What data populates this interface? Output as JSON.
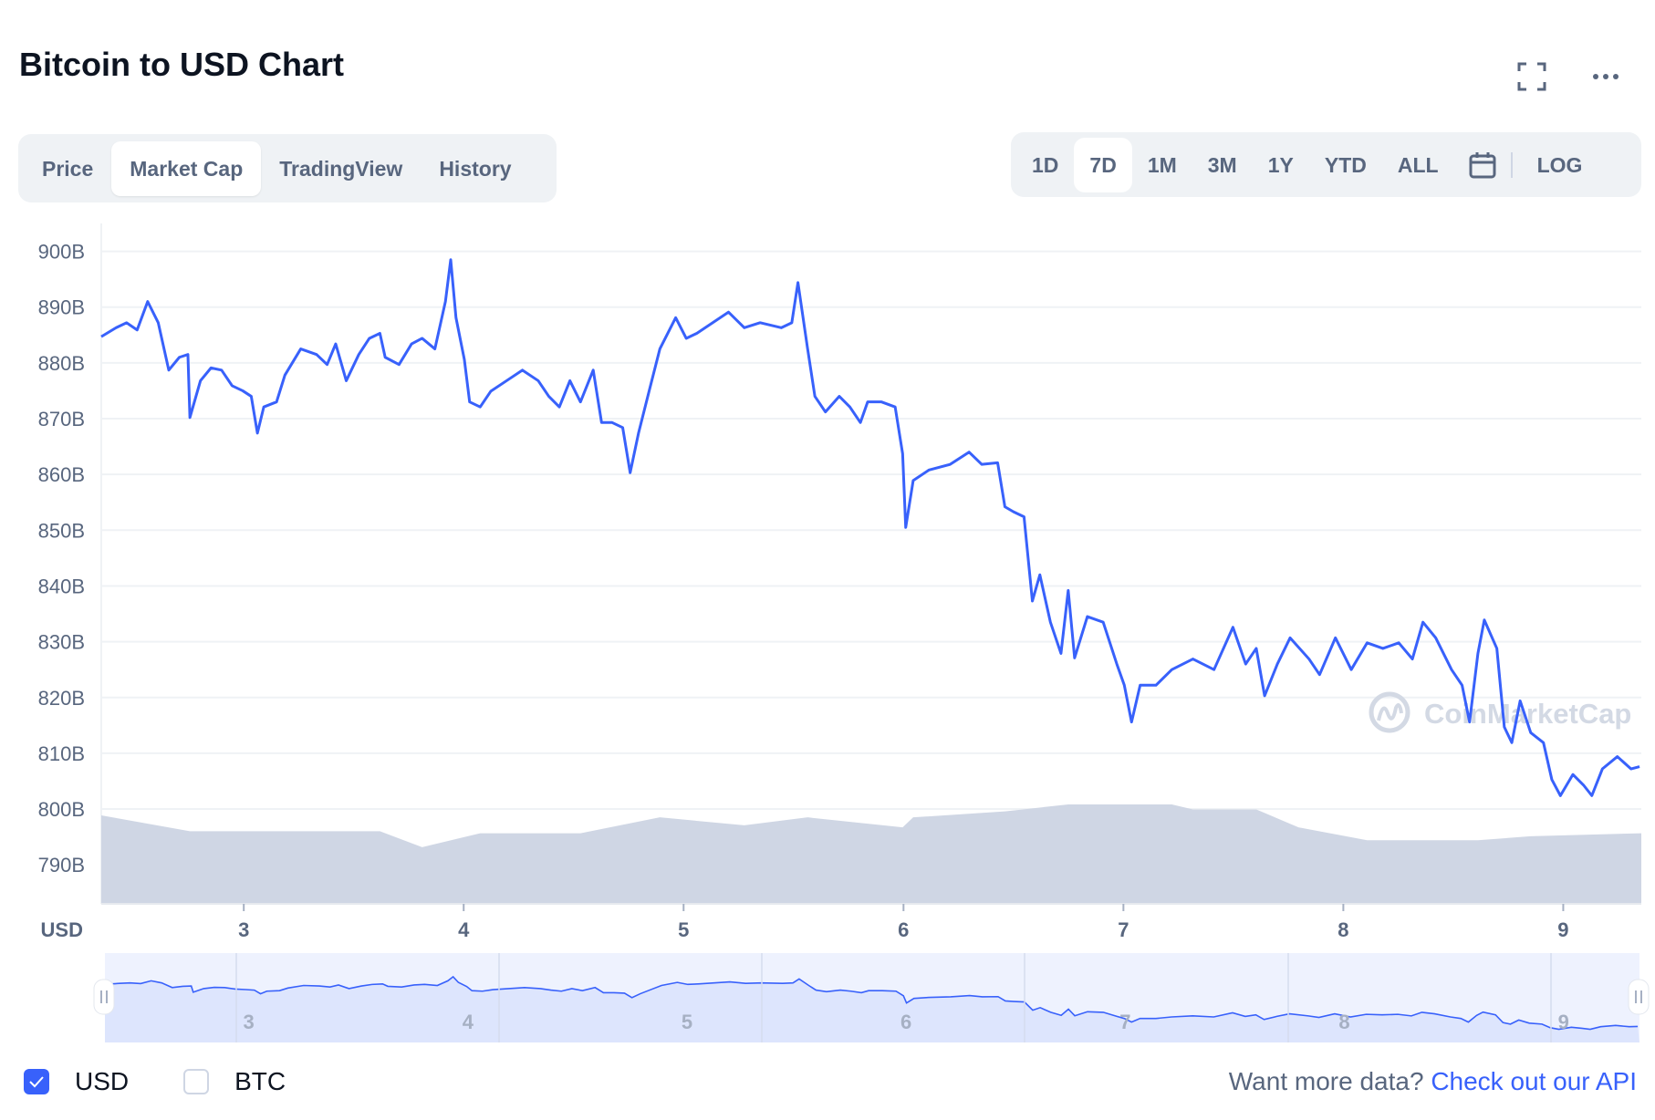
{
  "header": {
    "title": "Bitcoin to USD Chart",
    "icons": [
      "fullscreen-icon",
      "more-icon"
    ]
  },
  "tabs": [
    {
      "label": "Price",
      "active": false
    },
    {
      "label": "Market Cap",
      "active": true
    },
    {
      "label": "TradingView",
      "active": false
    },
    {
      "label": "History",
      "active": false
    }
  ],
  "ranges": [
    {
      "label": "1D",
      "active": false
    },
    {
      "label": "7D",
      "active": true
    },
    {
      "label": "1M",
      "active": false
    },
    {
      "label": "3M",
      "active": false
    },
    {
      "label": "1Y",
      "active": false
    },
    {
      "label": "YTD",
      "active": false
    },
    {
      "label": "ALL",
      "active": false
    }
  ],
  "calendar_icon": "calendar-icon",
  "log_label": "LOG",
  "watermark": "CoinMarketCap",
  "colors": {
    "line": "#3861fb",
    "volume": "#cfd6e4",
    "navigator_fill": "#dde5fd",
    "text": "#58667e",
    "accent": "#3861fb"
  },
  "legend": [
    {
      "label": "USD",
      "checked": true
    },
    {
      "label": "BTC",
      "checked": false
    }
  ],
  "footer": {
    "prompt": "Want more data?",
    "link": "Check out our API"
  },
  "chart_data": {
    "type": "line",
    "title": "Bitcoin to USD Chart",
    "ylabel": "USD",
    "ylim": [
      783,
      905
    ],
    "xlim": [
      2.352,
      9.355
    ],
    "grid": true,
    "y_ticks": [
      "900B",
      "890B",
      "880B",
      "870B",
      "860B",
      "850B",
      "840B",
      "830B",
      "820B",
      "810B",
      "800B",
      "790B"
    ],
    "y_tick_values": [
      900,
      890,
      880,
      870,
      860,
      850,
      840,
      830,
      820,
      810,
      800,
      790
    ],
    "x_ticks": [
      "3",
      "4",
      "5",
      "6",
      "7",
      "8",
      "9"
    ],
    "x_tick_values": [
      3,
      4,
      5,
      6,
      7,
      8,
      9
    ],
    "series": [
      {
        "x": [
          2.352,
          2.419,
          2.467,
          2.515,
          2.563,
          2.611,
          2.659,
          2.707,
          2.746,
          2.755,
          2.803,
          2.851,
          2.899,
          2.947,
          2.995,
          3.034,
          3.062,
          3.091,
          3.149,
          3.187,
          3.259,
          3.331,
          3.379,
          3.418,
          3.466,
          3.523,
          3.571,
          3.619,
          3.643,
          3.706,
          3.763,
          3.811,
          3.869,
          3.917,
          3.941,
          3.965,
          4.003,
          4.027,
          4.075,
          4.123,
          4.195,
          4.267,
          4.339,
          4.387,
          4.435,
          4.483,
          4.531,
          4.589,
          4.627,
          4.675,
          4.723,
          4.757,
          4.795,
          4.843,
          4.892,
          4.964,
          5.012,
          5.06,
          5.132,
          5.204,
          5.276,
          5.348,
          5.444,
          5.492,
          5.52,
          5.564,
          5.597,
          5.645,
          5.708,
          5.756,
          5.804,
          5.837,
          5.9,
          5.962,
          5.996,
          6.01,
          6.044,
          6.116,
          6.212,
          6.298,
          6.356,
          6.428,
          6.461,
          6.5,
          6.548,
          6.586,
          6.62,
          6.668,
          6.716,
          6.749,
          6.778,
          6.836,
          6.908,
          6.97,
          7.004,
          7.037,
          7.076,
          7.148,
          7.22,
          7.316,
          7.412,
          7.498,
          7.556,
          7.604,
          7.642,
          7.7,
          7.758,
          7.844,
          7.892,
          7.964,
          8.036,
          8.108,
          8.18,
          8.252,
          8.314,
          8.362,
          8.42,
          8.492,
          8.54,
          8.574,
          8.612,
          8.641,
          8.698,
          8.732,
          8.766,
          8.804,
          8.852,
          8.91,
          8.948,
          8.987,
          9.044,
          9.092,
          9.13,
          9.178,
          9.246,
          9.308,
          9.347
        ],
        "values": [
          884.7,
          886.3,
          887.2,
          885.9,
          891,
          887.2,
          878.7,
          881,
          881.5,
          870.2,
          876.8,
          879.1,
          878.7,
          875.9,
          875,
          874,
          867.4,
          872.1,
          873,
          877.8,
          882.5,
          881.5,
          879.7,
          883.4,
          876.8,
          881.5,
          884.4,
          885.3,
          881,
          879.7,
          883.4,
          884.4,
          882.5,
          891,
          898.5,
          888.1,
          880.6,
          873,
          872.1,
          874.9,
          876.8,
          878.7,
          876.8,
          874,
          872.1,
          876.8,
          873,
          878.7,
          869.3,
          869.3,
          868.4,
          860.3,
          867.4,
          874.9,
          882.5,
          888.1,
          884.4,
          885.3,
          887.2,
          889.1,
          886.3,
          887.2,
          886.3,
          887.2,
          894.4,
          882.5,
          874,
          871.2,
          874,
          872.1,
          869.3,
          873,
          873,
          872.1,
          863.7,
          850.5,
          858.9,
          860.8,
          861.8,
          864,
          861.8,
          862.1,
          854.2,
          853.3,
          852.4,
          837.3,
          842,
          833.5,
          827.9,
          839.2,
          827.1,
          834.5,
          833.5,
          826,
          822.2,
          815.6,
          822.2,
          822.2,
          825,
          826.9,
          825,
          832.6,
          826,
          828.8,
          820.3,
          826,
          830.7,
          826.9,
          824.1,
          830.7,
          825,
          829.8,
          828.8,
          829.8,
          826.9,
          833.5,
          830.7,
          825,
          822.2,
          815.6,
          827.9,
          833.9,
          828.8,
          814.7,
          811.9,
          819.4,
          813.7,
          811.9,
          805.3,
          802.4,
          806.2,
          804.3,
          802.4,
          807.2,
          809.4,
          807.2,
          807.6
        ]
      }
    ],
    "volume_relative": {
      "x": [
        2.352,
        2.755,
        3.619,
        3.811,
        4.075,
        4.531,
        4.892,
        5.276,
        5.564,
        5.996,
        6.044,
        6.461,
        6.749,
        7.22,
        7.316,
        7.604,
        7.796,
        8.108,
        8.612,
        8.852,
        9.355
      ],
      "values": [
        0.89,
        0.73,
        0.73,
        0.57,
        0.71,
        0.71,
        0.87,
        0.79,
        0.87,
        0.77,
        0.87,
        0.93,
        1.0,
        1.0,
        0.95,
        0.95,
        0.77,
        0.64,
        0.64,
        0.68,
        0.71
      ]
    },
    "navigator_ticks": [
      "3",
      "4",
      "5",
      "6",
      "7",
      "8",
      "9"
    ]
  }
}
